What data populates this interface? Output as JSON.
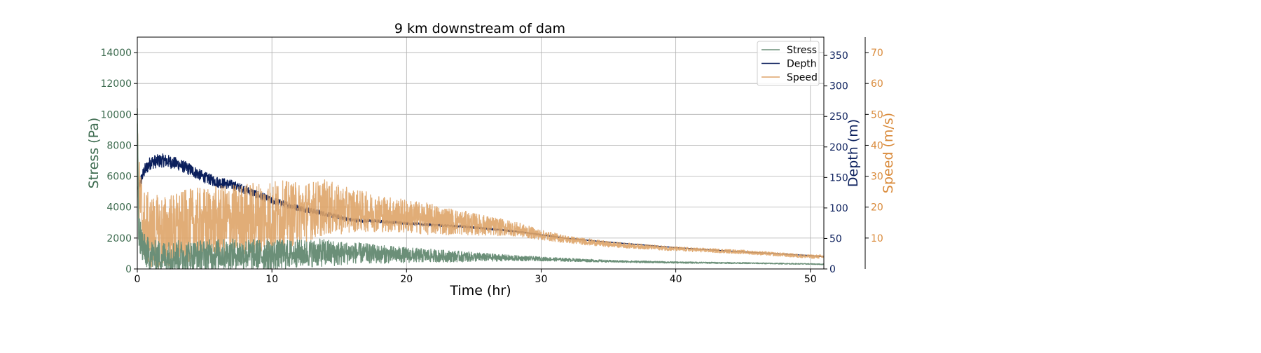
{
  "chart_data": {
    "type": "line",
    "title": "9 km downstream of dam",
    "xlabel": "Time (hr)",
    "xlim": [
      0,
      51
    ],
    "x_ticks": [
      "0",
      "10",
      "20",
      "30",
      "40",
      "50"
    ],
    "axes": {
      "stress": {
        "label": "Stress (Pa)",
        "ylim": [
          0,
          15000
        ],
        "ticks": [
          "0",
          "2000",
          "4000",
          "6000",
          "8000",
          "10000",
          "12000",
          "14000"
        ],
        "color": "#3d6b4f",
        "side": "left"
      },
      "depth": {
        "label": "Depth (m)",
        "ylim": [
          0,
          380
        ],
        "ticks": [
          "0",
          "50",
          "100",
          "150",
          "200",
          "250",
          "300",
          "350"
        ],
        "color": "#0b1f5c",
        "side": "right"
      },
      "speed": {
        "label": "Speed (m/s)",
        "ylim": [
          0,
          75
        ],
        "ticks": [
          "10",
          "20",
          "30",
          "40",
          "50",
          "60",
          "70"
        ],
        "color": "#d98a3a",
        "side": "right-offset"
      }
    },
    "legend_position": "top-right",
    "grid": true,
    "series": [
      {
        "name": "Stress",
        "axis": "stress",
        "color": "#6b8f78",
        "x": [
          0,
          0.1,
          0.5,
          1,
          2,
          3,
          4,
          5,
          6,
          8,
          10,
          12,
          14,
          15,
          16,
          18,
          20,
          22,
          24,
          26,
          28,
          30,
          35,
          40,
          45,
          50,
          51
        ],
        "y": [
          10400,
          2500,
          1200,
          900,
          800,
          850,
          850,
          900,
          950,
          950,
          900,
          1000,
          1050,
          1000,
          1050,
          950,
          900,
          850,
          800,
          750,
          700,
          650,
          500,
          420,
          380,
          320,
          300
        ],
        "noise": [
          0,
          1400,
          1100,
          1000,
          1000,
          1000,
          1000,
          1000,
          1000,
          1000,
          1000,
          900,
          900,
          800,
          700,
          600,
          500,
          420,
          350,
          260,
          180,
          130,
          70,
          50,
          40,
          30,
          30
        ]
      },
      {
        "name": "Depth",
        "axis": "depth",
        "color": "#0b1f5c",
        "x": [
          0,
          0.2,
          0.5,
          1,
          2,
          3,
          4,
          5,
          6,
          7,
          8,
          10,
          12,
          14,
          16,
          18,
          20,
          22,
          24,
          26,
          28,
          30,
          32,
          35,
          40,
          45,
          50,
          51
        ],
        "y": [
          130,
          140,
          160,
          175,
          178,
          172,
          162,
          150,
          142,
          138,
          130,
          112,
          100,
          90,
          80,
          78,
          75,
          72,
          70,
          66,
          62,
          56,
          50,
          44,
          35,
          28,
          22,
          20
        ],
        "noise": [
          0,
          10,
          11,
          11,
          11,
          10,
          10,
          9,
          9,
          8,
          7,
          6,
          5,
          4,
          3,
          2.5,
          2,
          2,
          2,
          1.5,
          1.2,
          1,
          0.6,
          0.3,
          0.2,
          0.2,
          0.2,
          0.2
        ]
      },
      {
        "name": "Speed",
        "axis": "speed",
        "color": "#dea468",
        "x": [
          0,
          0.1,
          0.5,
          1,
          2,
          3,
          4,
          6,
          8,
          10,
          12,
          14,
          15,
          16,
          18,
          20,
          22,
          24,
          26,
          28,
          30,
          32,
          35,
          40,
          45,
          50,
          51
        ],
        "y": [
          47,
          25,
          14,
          12,
          12,
          13,
          14,
          15,
          16,
          17,
          18,
          20,
          19,
          19,
          18,
          17,
          16,
          15,
          14,
          13,
          11,
          9.5,
          8,
          6.5,
          5.5,
          4,
          4
        ],
        "noise": [
          0,
          12,
          12,
          12,
          12,
          12,
          12,
          12,
          12,
          12,
          10,
          9,
          8,
          7,
          6,
          5.5,
          5,
          4,
          3.2,
          2.4,
          1.6,
          1.2,
          0.9,
          0.7,
          0.6,
          0.6,
          0.6
        ]
      }
    ]
  }
}
